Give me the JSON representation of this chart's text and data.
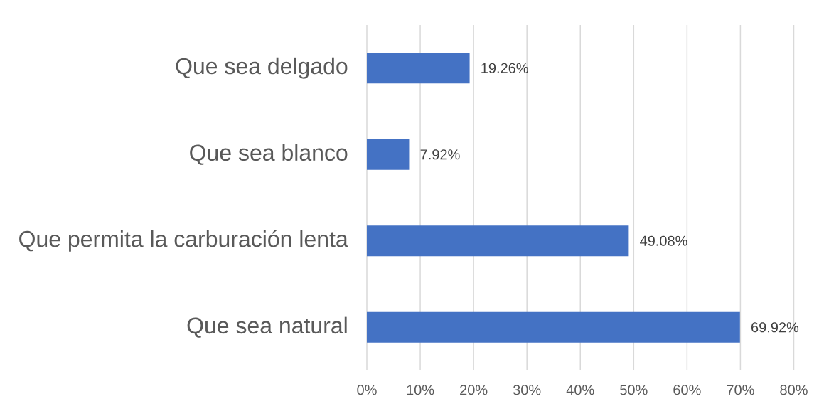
{
  "chart_data": {
    "type": "bar",
    "orientation": "horizontal",
    "categories": [
      "Que sea delgado",
      "Que sea blanco",
      "Que permita la carburación lenta",
      "Que sea natural"
    ],
    "values": [
      19.26,
      7.92,
      49.08,
      69.92
    ],
    "color": "#4472c4",
    "value_labels": [
      "19.26%",
      "7.92%",
      "49.08%",
      "69.92%"
    ],
    "xlim": [
      0,
      80
    ],
    "xticks": [
      {
        "value": 0,
        "label": "0%"
      },
      {
        "value": 10,
        "label": "10%"
      },
      {
        "value": 20,
        "label": "20%"
      },
      {
        "value": 30,
        "label": "30%"
      },
      {
        "value": 40,
        "label": "40%"
      },
      {
        "value": 50,
        "label": "50%"
      },
      {
        "value": 60,
        "label": "60%"
      },
      {
        "value": 70,
        "label": "70%"
      },
      {
        "value": 80,
        "label": "80%"
      }
    ],
    "grid": "x"
  }
}
